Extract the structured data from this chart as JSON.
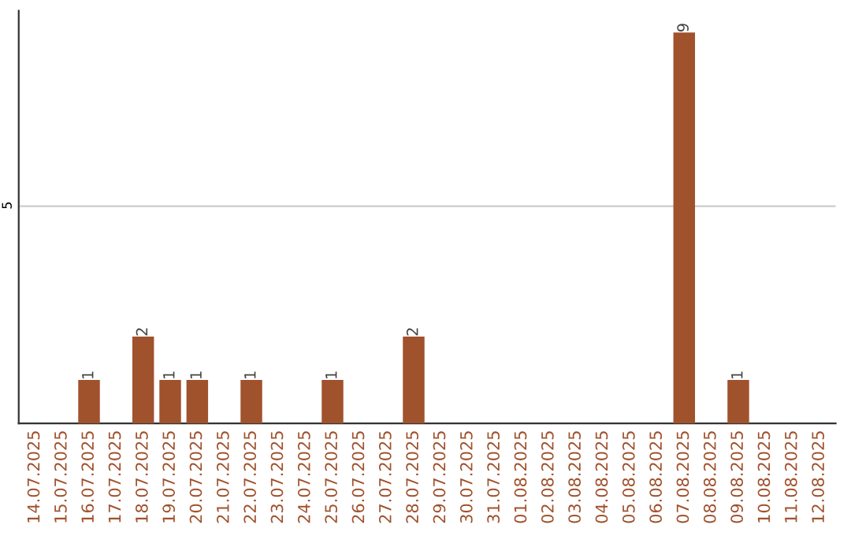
{
  "chart_data": {
    "type": "bar",
    "categories": [
      "14.07.2025",
      "15.07.2025",
      "16.07.2025",
      "17.07.2025",
      "18.07.2025",
      "19.07.2025",
      "20.07.2025",
      "21.07.2025",
      "22.07.2025",
      "23.07.2025",
      "24.07.2025",
      "25.07.2025",
      "26.07.2025",
      "27.07.2025",
      "28.07.2025",
      "29.07.2025",
      "30.07.2025",
      "31.07.2025",
      "01.08.2025",
      "02.08.2025",
      "03.08.2025",
      "04.08.2025",
      "05.08.2025",
      "06.08.2025",
      "07.08.2025",
      "08.08.2025",
      "09.08.2025",
      "10.08.2025",
      "11.08.2025",
      "12.08.2025"
    ],
    "values": [
      0,
      0,
      1,
      0,
      2,
      1,
      1,
      0,
      1,
      0,
      0,
      1,
      0,
      0,
      2,
      0,
      0,
      0,
      0,
      0,
      0,
      0,
      0,
      0,
      9,
      0,
      1,
      0,
      0,
      0
    ],
    "value_labels": [
      null,
      null,
      "1",
      null,
      "2",
      "1",
      "1",
      null,
      "1",
      null,
      null,
      "1",
      null,
      null,
      "2",
      null,
      null,
      null,
      null,
      null,
      null,
      null,
      null,
      null,
      "9",
      null,
      "1",
      null,
      null,
      null
    ],
    "color": "#a0522d",
    "ylim": [
      0,
      9.5
    ],
    "yticks": [
      5
    ],
    "grid": "y"
  }
}
